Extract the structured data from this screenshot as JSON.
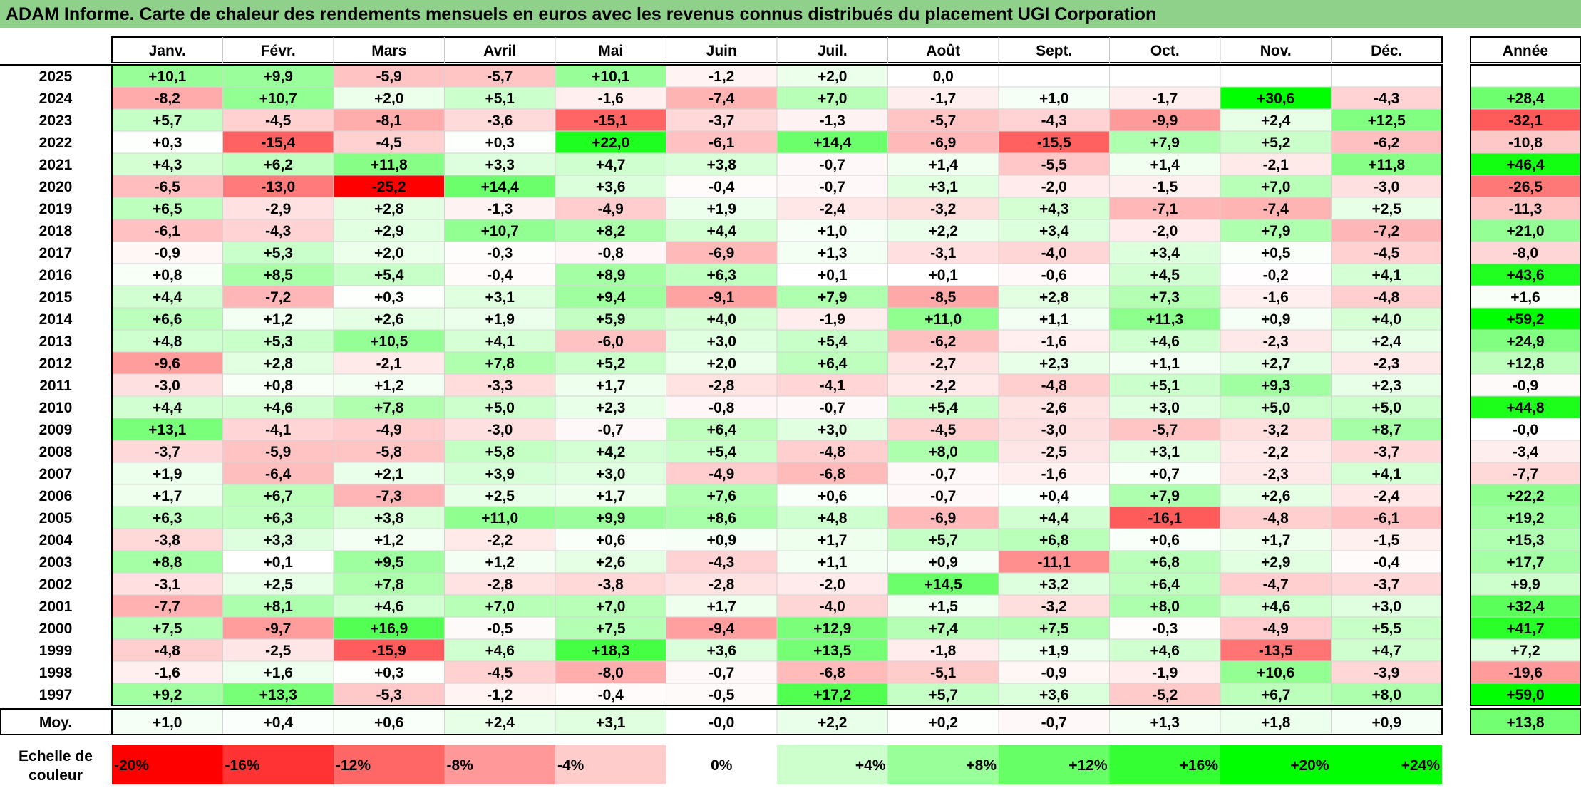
{
  "title": "ADAM Informe. Carte de chaleur des rendements mensuels en euros avec les revenus connus distribués du placement UGI Corporation",
  "chart_data": {
    "type": "heatmap",
    "months": [
      "Janv.",
      "Févr.",
      "Mars",
      "Avril",
      "Mai",
      "Juin",
      "Juil.",
      "Août",
      "Sept.",
      "Oct.",
      "Nov.",
      "Déc."
    ],
    "year_header": "Année",
    "rows": [
      {
        "year": "2025",
        "values": [
          "+10,1",
          "+9,9",
          "-5,9",
          "-5,7",
          "+10,1",
          "-1,2",
          "+2,0",
          "0,0",
          "",
          "",
          "",
          ""
        ],
        "annual": ""
      },
      {
        "year": "2024",
        "values": [
          "-8,2",
          "+10,7",
          "+2,0",
          "+5,1",
          "-1,6",
          "-7,4",
          "+7,0",
          "-1,7",
          "+1,0",
          "-1,7",
          "+30,6",
          "-4,3"
        ],
        "annual": "+28,4"
      },
      {
        "year": "2023",
        "values": [
          "+5,7",
          "-4,5",
          "-8,1",
          "-3,6",
          "-15,1",
          "-3,7",
          "-1,3",
          "-5,7",
          "-4,3",
          "-9,9",
          "+2,4",
          "+12,5"
        ],
        "annual": "-32,1"
      },
      {
        "year": "2022",
        "values": [
          "+0,3",
          "-15,4",
          "-4,5",
          "+0,3",
          "+22,0",
          "-6,1",
          "+14,4",
          "-6,9",
          "-15,5",
          "+7,9",
          "+5,2",
          "-6,2"
        ],
        "annual": "-10,8"
      },
      {
        "year": "2021",
        "values": [
          "+4,3",
          "+6,2",
          "+11,8",
          "+3,3",
          "+4,7",
          "+3,8",
          "-0,7",
          "+1,4",
          "-5,5",
          "+1,4",
          "-2,1",
          "+11,8"
        ],
        "annual": "+46,4"
      },
      {
        "year": "2020",
        "values": [
          "-6,5",
          "-13,0",
          "-25,2",
          "+14,4",
          "+3,6",
          "-0,4",
          "-0,7",
          "+3,1",
          "-2,0",
          "-1,5",
          "+7,0",
          "-3,0"
        ],
        "annual": "-26,5"
      },
      {
        "year": "2019",
        "values": [
          "+6,5",
          "-2,9",
          "+2,8",
          "-1,3",
          "-4,9",
          "+1,9",
          "-2,4",
          "-3,2",
          "+4,3",
          "-7,1",
          "-7,4",
          "+2,5"
        ],
        "annual": "-11,3"
      },
      {
        "year": "2018",
        "values": [
          "-6,1",
          "-4,3",
          "+2,9",
          "+10,7",
          "+8,2",
          "+4,4",
          "+1,0",
          "+2,2",
          "+3,4",
          "-2,0",
          "+7,9",
          "-7,2"
        ],
        "annual": "+21,0"
      },
      {
        "year": "2017",
        "values": [
          "-0,9",
          "+5,3",
          "+2,0",
          "-0,3",
          "-0,8",
          "-6,9",
          "+1,3",
          "-3,1",
          "-4,0",
          "+3,4",
          "+0,5",
          "-4,5"
        ],
        "annual": "-8,0"
      },
      {
        "year": "2016",
        "values": [
          "+0,8",
          "+8,5",
          "+5,4",
          "-0,4",
          "+8,9",
          "+6,3",
          "+0,1",
          "+0,1",
          "-0,6",
          "+4,5",
          "-0,2",
          "+4,1"
        ],
        "annual": "+43,6"
      },
      {
        "year": "2015",
        "values": [
          "+4,4",
          "-7,2",
          "+0,3",
          "+3,1",
          "+9,4",
          "-9,1",
          "+7,9",
          "-8,5",
          "+2,8",
          "+7,3",
          "-1,6",
          "-4,8"
        ],
        "annual": "+1,6"
      },
      {
        "year": "2014",
        "values": [
          "+6,6",
          "+1,2",
          "+2,6",
          "+1,9",
          "+5,9",
          "+4,0",
          "-1,9",
          "+11,0",
          "+1,1",
          "+11,3",
          "+0,9",
          "+4,0"
        ],
        "annual": "+59,2"
      },
      {
        "year": "2013",
        "values": [
          "+4,8",
          "+5,3",
          "+10,5",
          "+4,1",
          "-6,0",
          "+3,0",
          "+5,4",
          "-6,2",
          "-1,6",
          "+4,6",
          "-2,3",
          "+2,4"
        ],
        "annual": "+24,9"
      },
      {
        "year": "2012",
        "values": [
          "-9,6",
          "+2,8",
          "-2,1",
          "+7,8",
          "+5,2",
          "+2,0",
          "+6,4",
          "-2,7",
          "+2,3",
          "+1,1",
          "+2,7",
          "-2,3"
        ],
        "annual": "+12,8"
      },
      {
        "year": "2011",
        "values": [
          "-3,0",
          "+0,8",
          "+1,2",
          "-3,3",
          "+1,7",
          "-2,8",
          "-4,1",
          "-2,2",
          "-4,8",
          "+5,1",
          "+9,3",
          "+2,3"
        ],
        "annual": "-0,9"
      },
      {
        "year": "2010",
        "values": [
          "+4,4",
          "+4,6",
          "+7,8",
          "+5,0",
          "+2,3",
          "-0,8",
          "-0,7",
          "+5,4",
          "-2,6",
          "+3,0",
          "+5,0",
          "+5,0"
        ],
        "annual": "+44,8"
      },
      {
        "year": "2009",
        "values": [
          "+13,1",
          "-4,1",
          "-4,9",
          "-3,0",
          "-0,7",
          "+6,4",
          "+3,0",
          "-4,5",
          "-3,0",
          "-5,7",
          "-3,2",
          "+8,7"
        ],
        "annual": "-0,0"
      },
      {
        "year": "2008",
        "values": [
          "-3,7",
          "-5,9",
          "-5,8",
          "+5,8",
          "+4,2",
          "+5,4",
          "-4,8",
          "+8,0",
          "-2,5",
          "+3,1",
          "-2,2",
          "-3,7"
        ],
        "annual": "-3,4"
      },
      {
        "year": "2007",
        "values": [
          "+1,9",
          "-6,4",
          "+2,1",
          "+3,9",
          "+3,0",
          "-4,9",
          "-6,8",
          "-0,7",
          "-1,6",
          "+0,7",
          "-2,3",
          "+4,1"
        ],
        "annual": "-7,7"
      },
      {
        "year": "2006",
        "values": [
          "+1,7",
          "+6,7",
          "-7,3",
          "+2,5",
          "+1,7",
          "+7,6",
          "+0,6",
          "-0,7",
          "+0,4",
          "+7,9",
          "+2,6",
          "-2,4"
        ],
        "annual": "+22,2"
      },
      {
        "year": "2005",
        "values": [
          "+6,3",
          "+6,3",
          "+3,8",
          "+11,0",
          "+9,9",
          "+8,6",
          "+4,8",
          "-6,9",
          "+4,4",
          "-16,1",
          "-4,8",
          "-6,1"
        ],
        "annual": "+19,2"
      },
      {
        "year": "2004",
        "values": [
          "-3,8",
          "+3,3",
          "+1,2",
          "-2,2",
          "+0,6",
          "+0,9",
          "+1,7",
          "+5,7",
          "+6,8",
          "+0,6",
          "+1,7",
          "-1,5"
        ],
        "annual": "+15,3"
      },
      {
        "year": "2003",
        "values": [
          "+8,8",
          "+0,1",
          "+9,5",
          "+1,2",
          "+2,6",
          "-4,3",
          "+1,1",
          "+0,9",
          "-11,1",
          "+6,8",
          "+2,9",
          "-0,4"
        ],
        "annual": "+17,7"
      },
      {
        "year": "2002",
        "values": [
          "-3,1",
          "+2,5",
          "+7,8",
          "-2,8",
          "-3,8",
          "-2,8",
          "-2,0",
          "+14,5",
          "+3,2",
          "+6,4",
          "-4,7",
          "-3,7"
        ],
        "annual": "+9,9"
      },
      {
        "year": "2001",
        "values": [
          "-7,7",
          "+8,1",
          "+4,6",
          "+7,0",
          "+7,0",
          "+1,7",
          "-4,0",
          "+1,5",
          "-3,2",
          "+8,0",
          "+4,6",
          "+3,0"
        ],
        "annual": "+32,4"
      },
      {
        "year": "2000",
        "values": [
          "+7,5",
          "-9,7",
          "+16,9",
          "-0,5",
          "+7,5",
          "-9,4",
          "+12,9",
          "+7,4",
          "+7,5",
          "-0,3",
          "-4,9",
          "+5,5"
        ],
        "annual": "+41,7"
      },
      {
        "year": "1999",
        "values": [
          "-4,8",
          "-2,5",
          "-15,9",
          "+4,6",
          "+18,3",
          "+3,6",
          "+13,5",
          "-1,8",
          "+1,9",
          "+4,6",
          "-13,5",
          "+4,7"
        ],
        "annual": "+7,2"
      },
      {
        "year": "1998",
        "values": [
          "-1,6",
          "+1,6",
          "+0,3",
          "-4,5",
          "-8,0",
          "-0,7",
          "-6,8",
          "-5,1",
          "-0,9",
          "-1,9",
          "+10,6",
          "-3,9"
        ],
        "annual": "-19,6"
      },
      {
        "year": "1997",
        "values": [
          "+9,2",
          "+13,3",
          "-5,3",
          "-1,2",
          "-0,4",
          "-0,5",
          "+17,2",
          "+5,7",
          "+3,6",
          "-5,2",
          "+6,7",
          "+8,0"
        ],
        "annual": "+59,0"
      }
    ],
    "average": {
      "label": "Moy.",
      "values": [
        "+1,0",
        "+0,4",
        "+0,6",
        "+2,4",
        "+3,1",
        "-0,0",
        "+2,2",
        "+0,2",
        "-0,7",
        "+1,3",
        "+1,8",
        "+0,9"
      ],
      "annual": "+13,8"
    },
    "scale": {
      "label": [
        "Echelle de",
        "couleur"
      ],
      "steps": [
        "-20%",
        "-16%",
        "-12%",
        "-8%",
        "-4%",
        "0%",
        "+4%",
        "+8%",
        "+12%",
        "+16%",
        "+20%",
        "+24%"
      ],
      "colors": [
        "#ff0000",
        "#ff3333",
        "#ff6666",
        "#ff9999",
        "#ffcccc",
        "#ffffff",
        "#ccffcc",
        "#99ff99",
        "#66ff66",
        "#33ff33",
        "#00ff00",
        "#00ff00"
      ]
    },
    "colors": {
      "negative": "#ff0000",
      "positive": "#00ff00",
      "neutral": "#ffffff"
    }
  }
}
